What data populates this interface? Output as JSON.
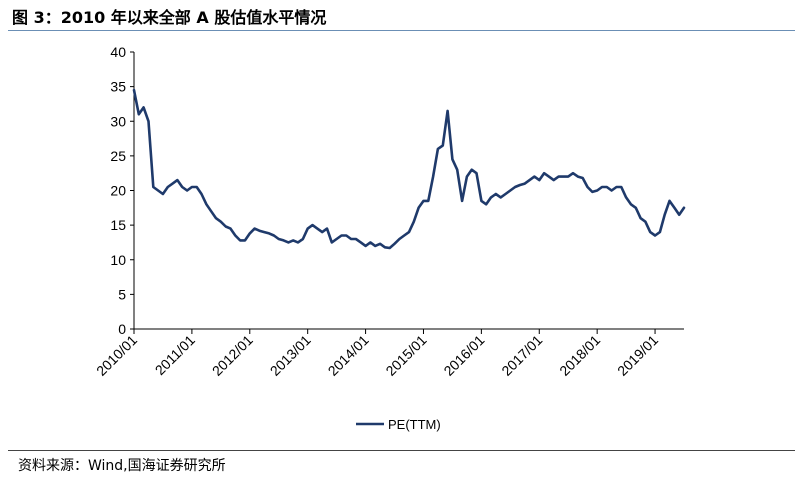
{
  "header": {
    "title": "图 3：2010 年以来全部 A 股估值水平情况"
  },
  "footer": {
    "source": "资料来源：Wind,国海证券研究所"
  },
  "chart_data": {
    "type": "line",
    "title": "",
    "xlabel": "",
    "ylabel": "",
    "ylim": [
      0,
      40
    ],
    "y_ticks": [
      "0",
      "5",
      "10",
      "15",
      "20",
      "25",
      "30",
      "35",
      "40"
    ],
    "x_ticks": [
      "2010/01",
      "2011/01",
      "2012/01",
      "2013/01",
      "2014/01",
      "2015/01",
      "2016/01",
      "2017/01",
      "2018/01",
      "2019/01"
    ],
    "x_range": [
      "2010/01",
      "2019/07"
    ],
    "grid": false,
    "legend": "bottom-center",
    "color": "#1f3a6b",
    "series": [
      {
        "name": "PE(TTM)",
        "x": [
          "2010/01",
          "2010/02",
          "2010/03",
          "2010/04",
          "2010/05",
          "2010/06",
          "2010/07",
          "2010/08",
          "2010/09",
          "2010/10",
          "2010/11",
          "2010/12",
          "2011/01",
          "2011/02",
          "2011/03",
          "2011/04",
          "2011/05",
          "2011/06",
          "2011/07",
          "2011/08",
          "2011/09",
          "2011/10",
          "2011/11",
          "2011/12",
          "2012/01",
          "2012/02",
          "2012/03",
          "2012/04",
          "2012/05",
          "2012/06",
          "2012/07",
          "2012/08",
          "2012/09",
          "2012/10",
          "2012/11",
          "2012/12",
          "2013/01",
          "2013/02",
          "2013/03",
          "2013/04",
          "2013/05",
          "2013/06",
          "2013/07",
          "2013/08",
          "2013/09",
          "2013/10",
          "2013/11",
          "2013/12",
          "2014/01",
          "2014/02",
          "2014/03",
          "2014/04",
          "2014/05",
          "2014/06",
          "2014/07",
          "2014/08",
          "2014/09",
          "2014/10",
          "2014/11",
          "2014/12",
          "2015/01",
          "2015/02",
          "2015/03",
          "2015/04",
          "2015/05",
          "2015/06",
          "2015/07",
          "2015/08",
          "2015/09",
          "2015/10",
          "2015/11",
          "2015/12",
          "2016/01",
          "2016/02",
          "2016/03",
          "2016/04",
          "2016/05",
          "2016/06",
          "2016/07",
          "2016/08",
          "2016/09",
          "2016/10",
          "2016/11",
          "2016/12",
          "2017/01",
          "2017/02",
          "2017/03",
          "2017/04",
          "2017/05",
          "2017/06",
          "2017/07",
          "2017/08",
          "2017/09",
          "2017/10",
          "2017/11",
          "2017/12",
          "2018/01",
          "2018/02",
          "2018/03",
          "2018/04",
          "2018/05",
          "2018/06",
          "2018/07",
          "2018/08",
          "2018/09",
          "2018/10",
          "2018/11",
          "2018/12",
          "2019/01",
          "2019/02",
          "2019/03",
          "2019/04",
          "2019/05",
          "2019/06",
          "2019/07"
        ],
        "values": [
          34.5,
          31.0,
          32.0,
          30.0,
          20.5,
          20.0,
          19.5,
          20.5,
          21.0,
          21.5,
          20.5,
          20.0,
          20.5,
          20.5,
          19.5,
          18.0,
          17.0,
          16.0,
          15.5,
          14.8,
          14.5,
          13.5,
          12.8,
          12.8,
          13.8,
          14.5,
          14.2,
          14.0,
          13.8,
          13.5,
          13.0,
          12.8,
          12.5,
          12.8,
          12.5,
          13.0,
          14.5,
          15.0,
          14.5,
          14.0,
          14.5,
          12.5,
          13.0,
          13.5,
          13.5,
          13.0,
          13.0,
          12.5,
          12.0,
          12.5,
          12.0,
          12.3,
          11.8,
          11.7,
          12.3,
          13.0,
          13.5,
          14.0,
          15.5,
          17.5,
          18.5,
          18.5,
          22.0,
          26.0,
          26.5,
          31.5,
          24.5,
          23.0,
          18.5,
          22.0,
          23.0,
          22.5,
          18.5,
          18.0,
          19.0,
          19.5,
          19.0,
          19.5,
          20.0,
          20.5,
          20.8,
          21.0,
          21.5,
          22.0,
          21.5,
          22.5,
          22.0,
          21.5,
          22.0,
          22.0,
          22.0,
          22.5,
          22.0,
          21.8,
          20.5,
          19.8,
          20.0,
          20.5,
          20.5,
          20.0,
          20.5,
          20.5,
          19.0,
          18.0,
          17.5,
          16.0,
          15.5,
          14.0,
          13.5,
          14.0,
          16.5,
          18.5,
          17.5,
          16.5,
          17.5
        ]
      }
    ]
  }
}
